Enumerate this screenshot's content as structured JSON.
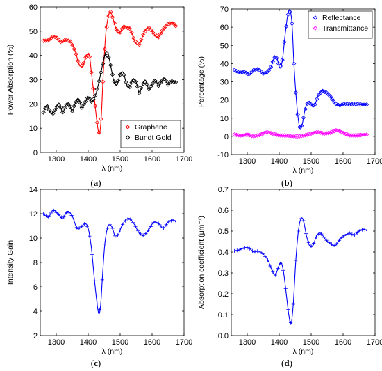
{
  "chart_data": [
    {
      "panel": "(a)",
      "type": "line",
      "ylabel": "Power Absorption (%)",
      "xlabel": "λ (nm)",
      "xlim": [
        1250,
        1700
      ],
      "ylim": [
        0,
        60
      ],
      "xticks": [
        1300,
        1400,
        1500,
        1600,
        1700
      ],
      "yticks": [
        0,
        10,
        20,
        30,
        40,
        50,
        60
      ],
      "legend": "bottom-right",
      "series": [
        {
          "name": "Graphene",
          "color": "#ff0000",
          "marker": "diamond",
          "x": [
            1260,
            1275,
            1290,
            1300,
            1315,
            1330,
            1345,
            1360,
            1370,
            1382,
            1393,
            1403,
            1410,
            1418,
            1427,
            1435,
            1441,
            1447,
            1455,
            1463,
            1470,
            1478,
            1490,
            1500,
            1510,
            1520,
            1532,
            1545,
            1560,
            1575,
            1590,
            1605,
            1620,
            1635,
            1650,
            1665,
            1675
          ],
          "y": [
            46,
            46.2,
            47.8,
            47.5,
            45.5,
            46.5,
            45.7,
            41.5,
            36.8,
            35.5,
            39.5,
            40.5,
            33,
            24,
            13,
            7.5,
            15,
            32,
            49,
            56,
            58,
            55,
            50,
            49.5,
            52,
            51.5,
            51,
            46,
            44.5,
            49.5,
            51.5,
            49,
            47.5,
            51,
            53,
            53.5,
            52
          ]
        },
        {
          "name": "Bundt Gold",
          "color": "#000000",
          "marker": "diamond",
          "x": [
            1260,
            1270,
            1280,
            1290,
            1300,
            1310,
            1320,
            1330,
            1340,
            1350,
            1360,
            1370,
            1380,
            1390,
            1400,
            1410,
            1420,
            1430,
            1440,
            1450,
            1460,
            1470,
            1480,
            1490,
            1500,
            1510,
            1520,
            1530,
            1540,
            1550,
            1560,
            1570,
            1580,
            1590,
            1600,
            1610,
            1620,
            1630,
            1640,
            1650,
            1660,
            1670,
            1675
          ],
          "y": [
            16.5,
            19.5,
            17,
            16,
            18.5,
            20,
            16.5,
            19.5,
            20,
            17,
            20.5,
            22,
            18.5,
            20.5,
            23,
            21,
            22.5,
            27,
            33,
            39,
            41.5,
            36,
            29.5,
            28,
            32,
            33,
            28,
            27,
            30,
            29,
            24.5,
            28,
            29.5,
            26,
            28,
            30,
            27.5,
            29.5,
            30.5,
            28,
            29.5,
            29,
            29
          ]
        }
      ]
    },
    {
      "panel": "(b)",
      "type": "line",
      "ylabel": "Percentage (%)",
      "xlabel": "λ (nm)",
      "xlim": [
        1250,
        1700
      ],
      "ylim": [
        -10,
        70
      ],
      "xticks": [
        1300,
        1400,
        1500,
        1600,
        1700
      ],
      "yticks": [
        -10,
        0,
        10,
        20,
        30,
        40,
        50,
        60,
        70
      ],
      "legend": "top-right",
      "series": [
        {
          "name": "Reflectance",
          "color": "#0000ff",
          "marker": "diamond",
          "x": [
            1260,
            1275,
            1290,
            1305,
            1320,
            1335,
            1350,
            1365,
            1375,
            1385,
            1393,
            1402,
            1410,
            1418,
            1426,
            1433,
            1440,
            1446,
            1452,
            1458,
            1465,
            1472,
            1480,
            1490,
            1500,
            1510,
            1522,
            1535,
            1548,
            1560,
            1575,
            1590,
            1605,
            1620,
            1635,
            1650,
            1665,
            1675
          ],
          "y": [
            36.5,
            35,
            35.5,
            34,
            36.5,
            37,
            34.5,
            35.5,
            38.5,
            43.5,
            43,
            37.5,
            42,
            55,
            66,
            69.5,
            62,
            40,
            24,
            12,
            4,
            6.5,
            14,
            19,
            17.5,
            16.5,
            22.5,
            25,
            24,
            22,
            18,
            17,
            18,
            17.5,
            18,
            17.5,
            17.5,
            17.5
          ]
        },
        {
          "name": "Transmittance",
          "color": "#ff00ff",
          "marker": "diamond",
          "x": [
            1260,
            1280,
            1300,
            1320,
            1340,
            1360,
            1380,
            1400,
            1420,
            1440,
            1460,
            1480,
            1500,
            1520,
            1540,
            1560,
            1580,
            1600,
            1620,
            1640,
            1660,
            1675
          ],
          "y": [
            1,
            0.3,
            1,
            0,
            0.8,
            2.5,
            1.5,
            0.5,
            0.5,
            0,
            0,
            0.5,
            1.5,
            2.5,
            1.5,
            2,
            3.5,
            2,
            0.5,
            0.5,
            0.8,
            1
          ]
        }
      ]
    },
    {
      "panel": "(c)",
      "type": "line",
      "ylabel": "Intensity Gain",
      "xlabel": "λ (nm)",
      "xlim": [
        1250,
        1700
      ],
      "ylim": [
        2,
        14
      ],
      "xticks": [
        1300,
        1400,
        1500,
        1600,
        1700
      ],
      "yticks": [
        2,
        4,
        6,
        8,
        10,
        12,
        14
      ],
      "series": [
        {
          "name": "",
          "color": "#0000ff",
          "marker": "plus",
          "x": [
            1260,
            1275,
            1290,
            1305,
            1320,
            1335,
            1350,
            1365,
            1378,
            1390,
            1400,
            1410,
            1418,
            1426,
            1433,
            1439,
            1445,
            1452,
            1460,
            1468,
            1476,
            1485,
            1495,
            1505,
            1518,
            1530,
            1545,
            1560,
            1575,
            1590,
            1605,
            1620,
            1635,
            1650,
            1665,
            1675
          ],
          "y": [
            12,
            11.7,
            12.3,
            12,
            11.6,
            12.2,
            11.8,
            10.8,
            10.9,
            11.2,
            10.8,
            9.2,
            7,
            5,
            3.8,
            4.5,
            7,
            9.5,
            10.8,
            11.1,
            10.8,
            10.1,
            10.3,
            11,
            11.5,
            11.6,
            11.1,
            10.4,
            10.2,
            10.7,
            11.3,
            11.2,
            10.8,
            11.3,
            11.5,
            11.3
          ]
        }
      ]
    },
    {
      "panel": "(d)",
      "type": "line",
      "ylabel": "Absorption coefficient (μm⁻¹)",
      "xlabel": "λ (nm)",
      "xlim": [
        1250,
        1700
      ],
      "ylim": [
        0,
        0.7
      ],
      "xticks": [
        1300,
        1400,
        1500,
        1600,
        1700
      ],
      "yticks": [
        0,
        0.1,
        0.2,
        0.3,
        0.4,
        0.5,
        0.6,
        0.7
      ],
      "series": [
        {
          "name": "",
          "color": "#0000ff",
          "marker": "plus",
          "x": [
            1260,
            1275,
            1290,
            1305,
            1320,
            1335,
            1350,
            1365,
            1378,
            1388,
            1398,
            1406,
            1414,
            1422,
            1430,
            1437,
            1444,
            1452,
            1460,
            1468,
            1476,
            1485,
            1495,
            1505,
            1518,
            1530,
            1545,
            1560,
            1575,
            1590,
            1605,
            1620,
            1635,
            1650,
            1665,
            1675
          ],
          "y": [
            0.405,
            0.41,
            0.42,
            0.42,
            0.4,
            0.405,
            0.39,
            0.36,
            0.31,
            0.29,
            0.33,
            0.35,
            0.3,
            0.2,
            0.1,
            0.055,
            0.15,
            0.36,
            0.5,
            0.56,
            0.55,
            0.48,
            0.43,
            0.43,
            0.48,
            0.49,
            0.46,
            0.44,
            0.43,
            0.46,
            0.48,
            0.49,
            0.48,
            0.5,
            0.51,
            0.5
          ]
        }
      ]
    }
  ]
}
